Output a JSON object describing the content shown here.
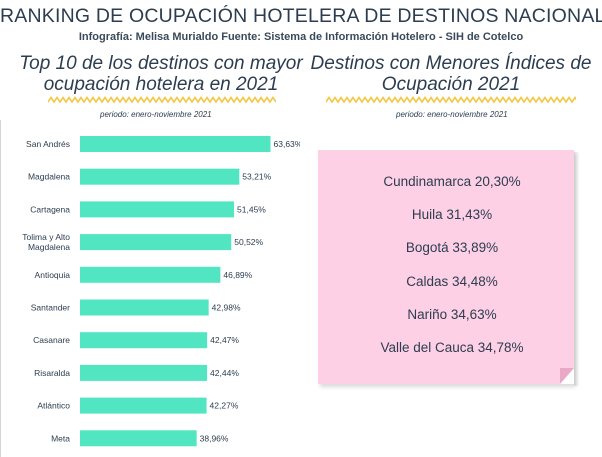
{
  "header": {
    "title": "RANKING DE OCUPACIÓN HOTELERA DE DESTINOS NACIONALES",
    "credit": "Infografía: Melisa Murialdo Fuente: Sistema de Información Hotelero - SIH de Cotelco"
  },
  "left_section": {
    "title_line1": "Top 10 de los destinos con mayor",
    "title_line2": "ocupación hotelera en 2021",
    "period": "periodo: enero-noviembre 2021"
  },
  "right_section": {
    "title_line1": "Destinos con Menores Índices de",
    "title_line2": "Ocupación 2021",
    "period": "periodo: enero-noviembre 2021",
    "items": [
      "Cundinamarca 20,30%",
      "Huila 31,43%",
      "Bogotá 33,89%",
      "Caldas 34,48%",
      "Nariño 34,63%",
      "Valle del Cauca 34,78%"
    ]
  },
  "colors": {
    "bar": "#52e5c1",
    "text": "#2c3d4f",
    "wave": "#f2c84b",
    "note": "#fdd0e6"
  },
  "chart_data": {
    "type": "bar",
    "orientation": "horizontal",
    "categories": [
      "San Andrés",
      "Magdalena",
      "Cartagena",
      "Tolima y Alto Magdalena",
      "Antioquia",
      "Santander",
      "Casanare",
      "Risaralda",
      "Atlántico",
      "Meta"
    ],
    "category_lines": [
      [
        "San Andrés"
      ],
      [
        "Magdalena"
      ],
      [
        "Cartagena"
      ],
      [
        "Tolima y Alto",
        "Magdalena"
      ],
      [
        "Antioquia"
      ],
      [
        "Santander"
      ],
      [
        "Casanare"
      ],
      [
        "Risaralda"
      ],
      [
        "Atlántico"
      ],
      [
        "Meta"
      ]
    ],
    "values": [
      63.63,
      53.21,
      51.45,
      50.52,
      46.89,
      42.98,
      42.47,
      42.44,
      42.27,
      38.96
    ],
    "value_labels": [
      "63,63%",
      "53,21%",
      "51,45%",
      "50,52%",
      "46,89%",
      "42,98%",
      "42,47%",
      "42,44%",
      "42,27%",
      "38,96%"
    ],
    "title": "Top 10 de los destinos con mayor ocupación hotelera en 2021",
    "xlabel": "",
    "ylabel": "",
    "xlim": [
      0,
      100
    ],
    "grid": false,
    "legend": "none"
  }
}
